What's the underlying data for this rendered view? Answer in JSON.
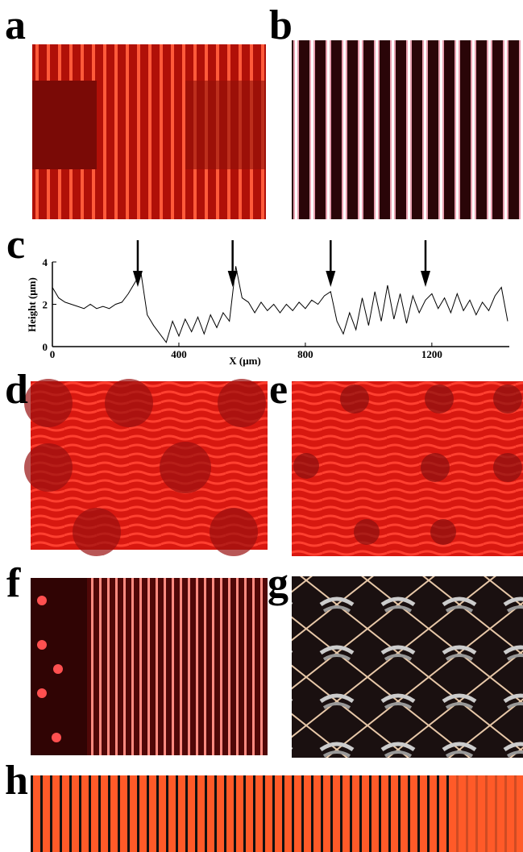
{
  "panel_labels": [
    "a",
    "b",
    "c",
    "d",
    "e",
    "f",
    "g",
    "h"
  ],
  "chart_data": {
    "type": "line",
    "xlabel": "X (μm)",
    "ylabel": "Height (μm)",
    "x": [
      0,
      20,
      40,
      60,
      80,
      100,
      120,
      140,
      160,
      180,
      200,
      220,
      240,
      260,
      280,
      300,
      320,
      340,
      360,
      380,
      400,
      420,
      440,
      460,
      480,
      500,
      520,
      540,
      560,
      580,
      600,
      620,
      640,
      660,
      680,
      700,
      720,
      740,
      760,
      780,
      800,
      820,
      840,
      860,
      880,
      900,
      920,
      940,
      960,
      980,
      1000,
      1020,
      1040,
      1060,
      1080,
      1100,
      1120,
      1140,
      1160,
      1180,
      1200,
      1220,
      1240,
      1260,
      1280,
      1300,
      1320,
      1340,
      1360,
      1380,
      1400,
      1420,
      1440
    ],
    "values": [
      2.8,
      2.3,
      2.1,
      2.0,
      1.9,
      1.8,
      2.0,
      1.8,
      1.9,
      1.8,
      2.0,
      2.1,
      2.5,
      3.0,
      3.5,
      1.5,
      1.0,
      0.6,
      0.2,
      1.2,
      0.5,
      1.3,
      0.7,
      1.4,
      0.6,
      1.5,
      0.9,
      1.6,
      1.2,
      3.8,
      2.3,
      2.1,
      1.6,
      2.1,
      1.7,
      2.0,
      1.6,
      2.0,
      1.7,
      2.1,
      1.8,
      2.2,
      2.0,
      2.4,
      2.6,
      1.2,
      0.6,
      1.6,
      0.8,
      2.3,
      1.0,
      2.6,
      1.2,
      2.9,
      1.3,
      2.5,
      1.1,
      2.4,
      1.6,
      2.2,
      2.5,
      1.8,
      2.3,
      1.6,
      2.5,
      1.7,
      2.2,
      1.5,
      2.1,
      1.7,
      2.4,
      2.8,
      1.2
    ],
    "color": "#000000",
    "arrows": [
      270,
      570,
      880,
      1180
    ],
    "xlim": [
      0,
      1445
    ],
    "ylim": [
      0,
      4
    ],
    "xticks": [
      0,
      400,
      800,
      1200
    ],
    "yticks": [
      0,
      2,
      4
    ]
  }
}
